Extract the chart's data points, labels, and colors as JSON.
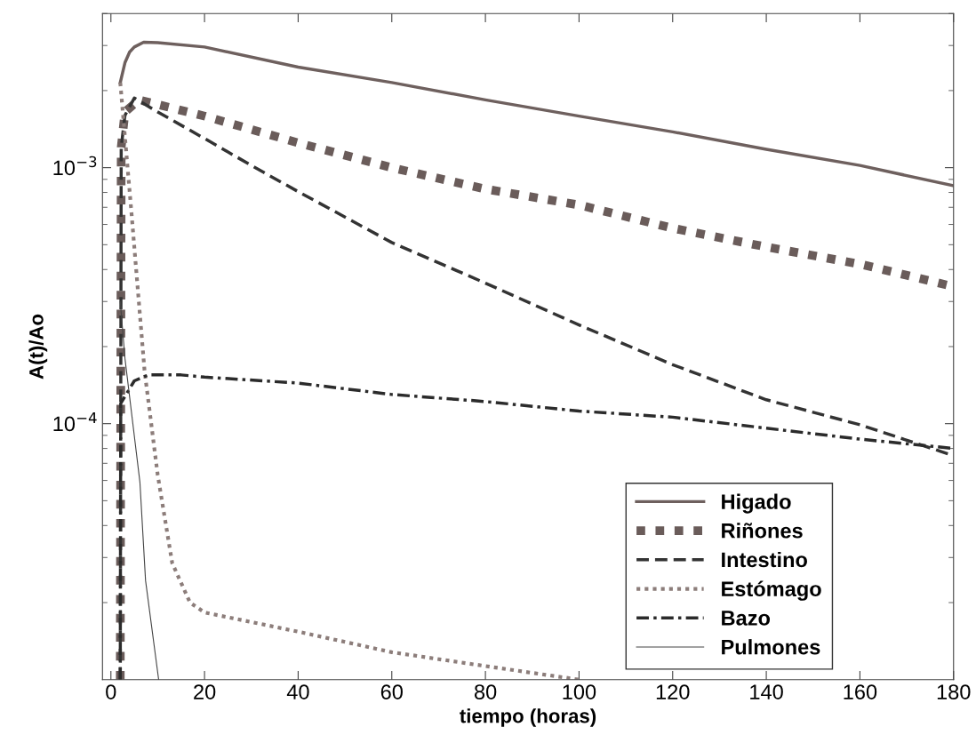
{
  "chart_data": {
    "type": "line",
    "xlabel": "tiempo (horas)",
    "ylabel": "A(t)/Ao",
    "log": "y",
    "xlim": [
      -1.8,
      180
    ],
    "xticks": [
      0,
      20,
      40,
      60,
      80,
      100,
      120,
      140,
      160,
      180
    ],
    "ylim": [
      1e-05,
      0.004
    ],
    "yticks": [
      {
        "value": 0.001,
        "label": "10$^{−3}$"
      },
      {
        "value": 0.0001,
        "label": "10$^{−4}$"
      }
    ],
    "grid": false,
    "legend": "bottom right",
    "marker": "none",
    "series": [
      {
        "name": "Higado",
        "color": "#6e605e",
        "line_style": "solid",
        "x": [
          2,
          3,
          4,
          5,
          7,
          10,
          20,
          40,
          60,
          80,
          100,
          120,
          140,
          160,
          180
        ],
        "values": [
          0.00215,
          0.00257,
          0.00283,
          0.00296,
          0.00309,
          0.00308,
          0.00296,
          0.00247,
          0.00215,
          0.00184,
          0.00159,
          0.00138,
          0.00118,
          0.00102,
          0.00085
        ]
      },
      {
        "name": "Riñones",
        "color": "#6a5c5a",
        "line_style": "dotted",
        "x": [
          2,
          2.2,
          3,
          6,
          20,
          40,
          60,
          80,
          100,
          120,
          140,
          160,
          180
        ],
        "values": [
          1e-05,
          0.0012,
          0.00165,
          0.00184,
          0.00159,
          0.00125,
          0.001,
          0.000825,
          0.000715,
          0.00058,
          0.00049,
          0.00042,
          0.000343
        ]
      },
      {
        "name": "Intestino",
        "color": "#333333",
        "line_style": "dashed",
        "x": [
          2,
          2.2,
          3,
          5,
          10,
          20,
          30,
          40,
          60,
          80,
          100,
          120,
          140,
          160,
          180
        ],
        "values": [
          1e-05,
          0.0012,
          0.0016,
          0.00187,
          0.00165,
          0.0013,
          0.00102,
          0.000806,
          0.00051,
          0.000354,
          0.000243,
          0.00017,
          0.000124,
          9.9e-05,
          7.5e-05
        ]
      },
      {
        "name": "Estómago",
        "color": "#8c7d7a",
        "line_style": "dotted",
        "x": [
          2,
          4.3,
          7.2,
          10,
          13.1,
          16.9,
          20,
          40,
          60,
          80,
          100
        ],
        "values": [
          0.00215,
          0.000698,
          0.00016,
          6.3e-05,
          2.85e-05,
          2e-05,
          1.83e-05,
          1.54e-05,
          1.28e-05,
          1.13e-05,
          1e-05
        ]
      },
      {
        "name": "Bazo",
        "color": "#2b2b2b",
        "line_style": "dashdot",
        "x": [
          2,
          2.1,
          5,
          8,
          15,
          20,
          40,
          60,
          80,
          100,
          120,
          140,
          160,
          180
        ],
        "values": [
          1e-05,
          0.00012,
          0.000147,
          0.000155,
          0.000155,
          0.000152,
          0.000144,
          0.00013,
          0.000122,
          0.000112,
          0.000106,
          9.6e-05,
          8.7e-05,
          8e-05
        ]
      },
      {
        "name": "Pulmones",
        "color": "#444444",
        "line_style": "solid",
        "x": [
          2,
          3,
          6.2,
          7.4,
          10.2
        ],
        "values": [
          0.0003,
          0.00018,
          5.9e-05,
          2.44e-05,
          1e-05
        ]
      }
    ]
  }
}
